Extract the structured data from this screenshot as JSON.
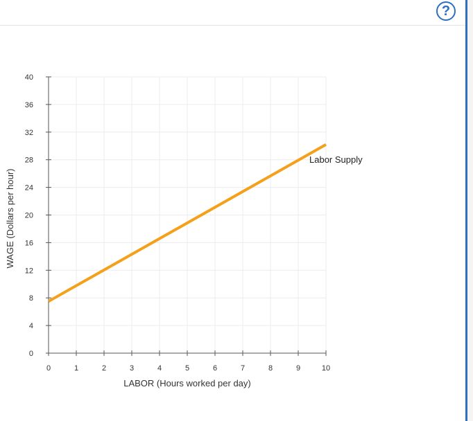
{
  "help": {
    "label": "?"
  },
  "colors": {
    "accent": "#2e6fbf",
    "supply_line": "#f5a01a",
    "grid": "#ececec",
    "axis": "#555555"
  },
  "chart_data": {
    "type": "line",
    "xlabel": "LABOR (Hours worked per day)",
    "ylabel": "WAGE (Dollars per hour)",
    "xlim": [
      0,
      10
    ],
    "ylim": [
      0,
      40
    ],
    "xticks": [
      0,
      1,
      2,
      3,
      4,
      5,
      6,
      7,
      8,
      9,
      10
    ],
    "yticks": [
      0,
      4,
      8,
      12,
      16,
      20,
      24,
      28,
      32,
      36,
      40
    ],
    "grid": true,
    "series": [
      {
        "name": "Labor Supply",
        "x": [
          0,
          10
        ],
        "y": [
          7.5,
          30.2
        ],
        "color": "#f5a01a"
      }
    ]
  }
}
